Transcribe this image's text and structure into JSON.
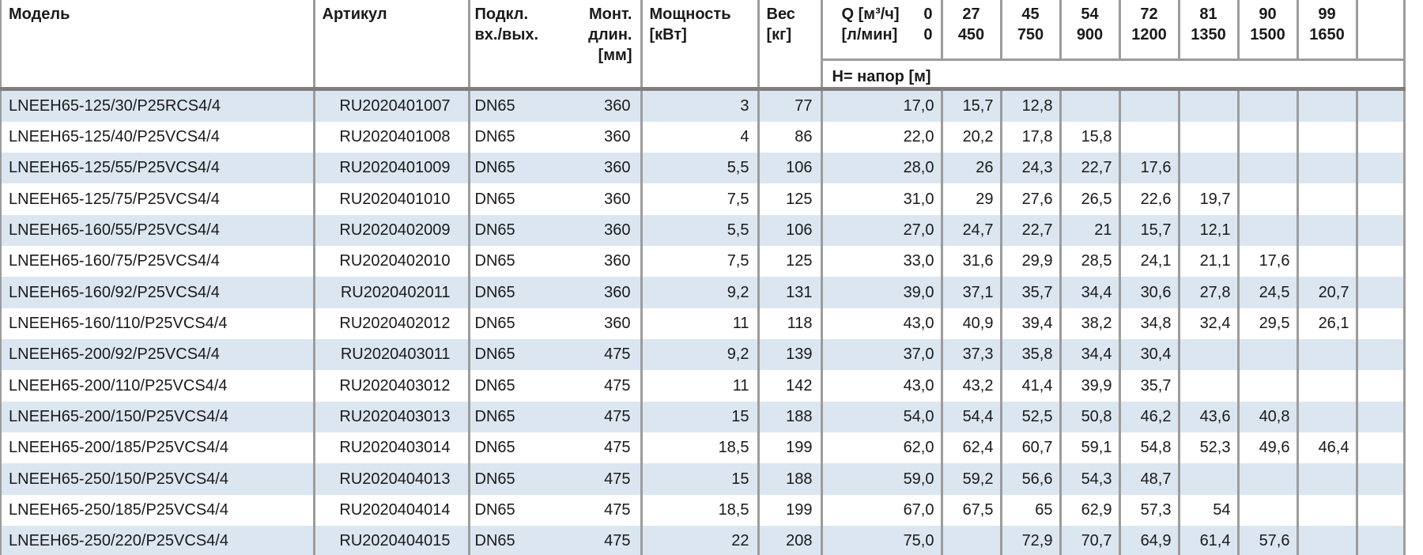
{
  "table": {
    "headers": {
      "model": "Модель",
      "article": "Артикул",
      "connection_line1": "Подкл.",
      "connection_line2": "вх./вых.",
      "length_line1": "Монт.",
      "length_line2": "длин.",
      "length_line3": "[мм]",
      "power_line1": "Мощность",
      "power_line2": "[кВт]",
      "weight_line1": "Вес",
      "weight_line2": "[кг]",
      "q_line1_label": "Q [м³/ч]",
      "q_line1_value": "0",
      "q_line2_label": "[л/мин]",
      "q_line2_value": "0",
      "head_row_label": "H= напор [м]",
      "q_columns": [
        {
          "m3h": "27",
          "lmin": "450"
        },
        {
          "m3h": "45",
          "lmin": "750"
        },
        {
          "m3h": "54",
          "lmin": "900"
        },
        {
          "m3h": "72",
          "lmin": "1200"
        },
        {
          "m3h": "81",
          "lmin": "1350"
        },
        {
          "m3h": "90",
          "lmin": "1500"
        },
        {
          "m3h": "99",
          "lmin": "1650"
        }
      ]
    },
    "rows": [
      {
        "model": "LNEEH65-125/30/P25RCS4/4",
        "article": "RU2020401007",
        "connection": "DN65",
        "length": "360",
        "power": "3",
        "weight": "77",
        "h": [
          "17,0",
          "15,7",
          "12,8",
          "",
          "",
          "",
          "",
          ""
        ]
      },
      {
        "model": "LNEEH65-125/40/P25VCS4/4",
        "article": "RU2020401008",
        "connection": "DN65",
        "length": "360",
        "power": "4",
        "weight": "86",
        "h": [
          "22,0",
          "20,2",
          "17,8",
          "15,8",
          "",
          "",
          "",
          ""
        ]
      },
      {
        "model": "LNEEH65-125/55/P25VCS4/4",
        "article": "RU2020401009",
        "connection": "DN65",
        "length": "360",
        "power": "5,5",
        "weight": "106",
        "h": [
          "28,0",
          "26",
          "24,3",
          "22,7",
          "17,6",
          "",
          "",
          ""
        ]
      },
      {
        "model": "LNEEH65-125/75/P25VCS4/4",
        "article": "RU2020401010",
        "connection": "DN65",
        "length": "360",
        "power": "7,5",
        "weight": "125",
        "h": [
          "31,0",
          "29",
          "27,6",
          "26,5",
          "22,6",
          "19,7",
          "",
          ""
        ]
      },
      {
        "model": "LNEEH65-160/55/P25VCS4/4",
        "article": "RU2020402009",
        "connection": "DN65",
        "length": "360",
        "power": "5,5",
        "weight": "106",
        "h": [
          "27,0",
          "24,7",
          "22,7",
          "21",
          "15,7",
          "12,1",
          "",
          ""
        ]
      },
      {
        "model": "LNEEH65-160/75/P25VCS4/4",
        "article": "RU2020402010",
        "connection": "DN65",
        "length": "360",
        "power": "7,5",
        "weight": "125",
        "h": [
          "33,0",
          "31,6",
          "29,9",
          "28,5",
          "24,1",
          "21,1",
          "17,6",
          ""
        ]
      },
      {
        "model": "LNEEH65-160/92/P25VCS4/4",
        "article": "RU2020402011",
        "connection": "DN65",
        "length": "360",
        "power": "9,2",
        "weight": "131",
        "h": [
          "39,0",
          "37,1",
          "35,7",
          "34,4",
          "30,6",
          "27,8",
          "24,5",
          "20,7"
        ]
      },
      {
        "model": "LNEEH65-160/110/P25VCS4/4",
        "article": "RU2020402012",
        "connection": "DN65",
        "length": "360",
        "power": "11",
        "weight": "118",
        "h": [
          "43,0",
          "40,9",
          "39,4",
          "38,2",
          "34,8",
          "32,4",
          "29,5",
          "26,1"
        ]
      },
      {
        "model": "LNEEH65-200/92/P25VCS4/4",
        "article": "RU2020403011",
        "connection": "DN65",
        "length": "475",
        "power": "9,2",
        "weight": "139",
        "h": [
          "37,0",
          "37,3",
          "35,8",
          "34,4",
          "30,4",
          "",
          "",
          ""
        ]
      },
      {
        "model": "LNEEH65-200/110/P25VCS4/4",
        "article": "RU2020403012",
        "connection": "DN65",
        "length": "475",
        "power": "11",
        "weight": "142",
        "h": [
          "43,0",
          "43,2",
          "41,4",
          "39,9",
          "35,7",
          "",
          "",
          ""
        ]
      },
      {
        "model": "LNEEH65-200/150/P25VCS4/4",
        "article": "RU2020403013",
        "connection": "DN65",
        "length": "475",
        "power": "15",
        "weight": "188",
        "h": [
          "54,0",
          "54,4",
          "52,5",
          "50,8",
          "46,2",
          "43,6",
          "40,8",
          ""
        ]
      },
      {
        "model": "LNEEH65-200/185/P25VCS4/4",
        "article": "RU2020403014",
        "connection": "DN65",
        "length": "475",
        "power": "18,5",
        "weight": "199",
        "h": [
          "62,0",
          "62,4",
          "60,7",
          "59,1",
          "54,8",
          "52,3",
          "49,6",
          "46,4"
        ]
      },
      {
        "model": "LNEEH65-250/150/P25VCS4/4",
        "article": "RU2020404013",
        "connection": "DN65",
        "length": "475",
        "power": "15",
        "weight": "188",
        "h": [
          "59,0",
          "59,2",
          "56,6",
          "54,3",
          "48,7",
          "",
          "",
          ""
        ]
      },
      {
        "model": "LNEEH65-250/185/P25VCS4/4",
        "article": "RU2020404014",
        "connection": "DN65",
        "length": "475",
        "power": "18,5",
        "weight": "199",
        "h": [
          "67,0",
          "67,5",
          "65",
          "62,9",
          "57,3",
          "54",
          "",
          ""
        ]
      },
      {
        "model": "LNEEH65-250/220/P25VCS4/4",
        "article": "RU2020404015",
        "connection": "DN65",
        "length": "475",
        "power": "22",
        "weight": "208",
        "h": [
          "75,0",
          "",
          "72,9",
          "70,7",
          "64,9",
          "61,4",
          "57,6",
          ""
        ]
      }
    ]
  },
  "colors": {
    "row_shade": "#dce6f1",
    "border": "#9c9c9c",
    "border_dark": "#7f7f7f",
    "text": "#1a1a1a"
  }
}
